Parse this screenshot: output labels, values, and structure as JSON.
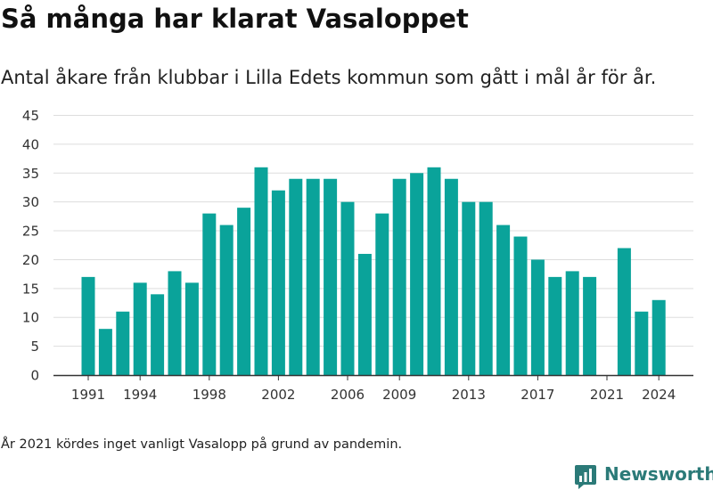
{
  "title": "Så många har klarat Vasaloppet",
  "subtitle": "Antal åkare från klubbar i Lilla Edets kommun som gått i mål år för år.",
  "footnote": "År 2021 kördes inget vanligt Vasalopp på grund av pandemin.",
  "brand": {
    "name": "Newsworthy",
    "icon": "newsworthy-logo-icon",
    "color": "#2b7a78"
  },
  "colors": {
    "bar": "#0aa39a",
    "grid": "#dddddd",
    "axis": "#333333"
  },
  "chart_data": {
    "type": "bar",
    "categories": [
      1991,
      1992,
      1993,
      1994,
      1995,
      1996,
      1997,
      1998,
      1999,
      2000,
      2001,
      2002,
      2003,
      2004,
      2005,
      2006,
      2007,
      2008,
      2009,
      2010,
      2011,
      2012,
      2013,
      2014,
      2015,
      2016,
      2017,
      2018,
      2019,
      2020,
      2021,
      2022,
      2023,
      2024
    ],
    "values": [
      17,
      8,
      11,
      16,
      14,
      18,
      16,
      28,
      26,
      29,
      36,
      32,
      34,
      34,
      34,
      30,
      21,
      28,
      34,
      35,
      36,
      34,
      30,
      30,
      26,
      24,
      20,
      17,
      18,
      17,
      null,
      22,
      11,
      13
    ],
    "x_tick_labels": [
      "1991",
      "1994",
      "1998",
      "2002",
      "2006",
      "2009",
      "2013",
      "2017",
      "2021",
      "2024"
    ],
    "y_ticks": [
      0,
      5,
      10,
      15,
      20,
      25,
      30,
      35,
      40,
      45
    ],
    "ylim": [
      0,
      45
    ],
    "xlabel": "",
    "ylabel": "",
    "grid": true,
    "legend": "none"
  }
}
